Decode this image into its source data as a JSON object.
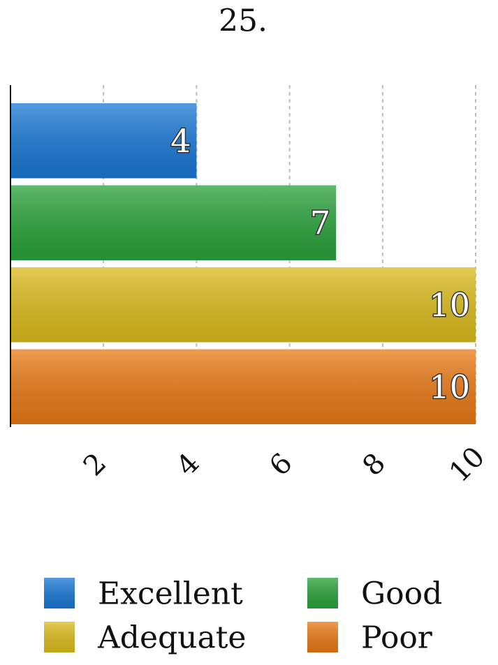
{
  "chart_data": {
    "type": "bar",
    "orientation": "horizontal",
    "title": "25.",
    "categories": [
      "Excellent",
      "Good",
      "Adequate",
      "Poor"
    ],
    "values": [
      4,
      7,
      10,
      10
    ],
    "colors": [
      "#1a78d6",
      "#2aa33a",
      "#dcbc1c",
      "#ea7a15"
    ],
    "xlim": [
      0,
      10
    ],
    "xticks": [
      2,
      4,
      6,
      8,
      10
    ],
    "grid": true
  }
}
